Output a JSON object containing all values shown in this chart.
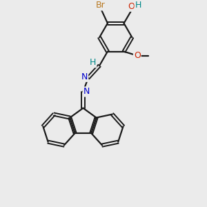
{
  "background_color": "#ebebeb",
  "bond_color": "#1a1a1a",
  "atom_colors": {
    "Br": "#b87820",
    "O": "#cc2200",
    "N": "#0000cc",
    "H": "#008888",
    "C": "#1a1a1a"
  },
  "figsize": [
    3.0,
    3.0
  ],
  "dpi": 100
}
